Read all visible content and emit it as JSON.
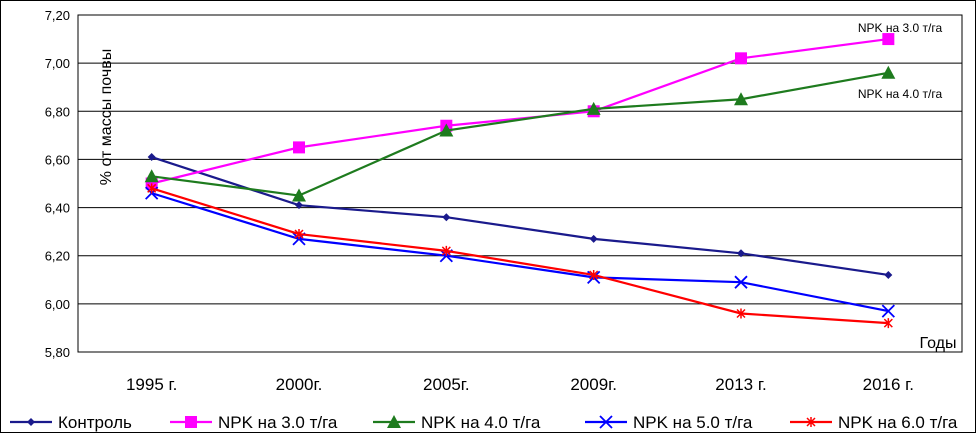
{
  "chart_data": {
    "type": "line",
    "title": "",
    "xlabel": "Годы",
    "ylabel": "% от массы почвы",
    "categories": [
      "1995 г.",
      "2000г.",
      "2005г.",
      "2009г.",
      "2013 г.",
      "2016 г."
    ],
    "ylim": [
      5.8,
      7.2
    ],
    "ystep": 0.2,
    "y_tick_labels": [
      "5,80",
      "6,00",
      "6,20",
      "6,40",
      "6,60",
      "6,80",
      "7,00",
      "7,20"
    ],
    "grid": true,
    "legend_position": "bottom",
    "series": [
      {
        "name": "Контроль",
        "color": "#1a1a8c",
        "marker": "diamond",
        "values": [
          6.61,
          6.41,
          6.36,
          6.27,
          6.21,
          6.12
        ]
      },
      {
        "name": "NPK на 3.0 т/га",
        "color": "#ff00ff",
        "marker": "square",
        "values": [
          6.5,
          6.65,
          6.74,
          6.8,
          7.02,
          7.1
        ]
      },
      {
        "name": "NPK на 4.0 т/га",
        "color": "#1e7b1e",
        "marker": "triangle",
        "values": [
          6.53,
          6.45,
          6.72,
          6.81,
          6.85,
          6.96
        ]
      },
      {
        "name": "NPK на 5.0 т/га",
        "color": "#0000ff",
        "marker": "x",
        "values": [
          6.46,
          6.27,
          6.2,
          6.11,
          6.09,
          5.97
        ]
      },
      {
        "name": "NPK на 6.0 т/га",
        "color": "#ff0000",
        "marker": "star",
        "values": [
          6.48,
          6.29,
          6.22,
          6.12,
          5.96,
          5.92
        ]
      }
    ],
    "annotations": [
      {
        "text": "NPK на 3.0 т/га",
        "series": 1
      },
      {
        "text": "NPK на 4.0 т/га",
        "series": 2
      }
    ]
  }
}
